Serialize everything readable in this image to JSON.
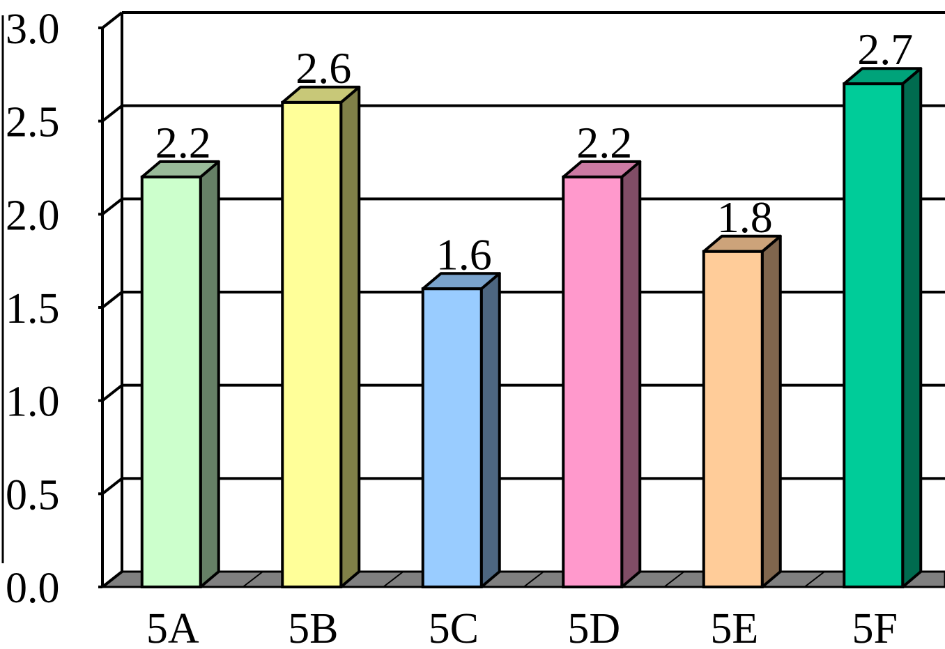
{
  "chart_data": {
    "type": "bar",
    "categories": [
      "5A",
      "5B",
      "5C",
      "5D",
      "5E",
      "5F"
    ],
    "values": [
      2.2,
      2.6,
      1.6,
      2.2,
      1.8,
      2.7
    ],
    "value_labels": [
      "2.2",
      "2.6",
      "1.6",
      "2.2",
      "1.8",
      "2.7"
    ],
    "yticks": [
      "0.0",
      "0.5",
      "1.0",
      "1.5",
      "2.0",
      "2.5",
      "3.0"
    ],
    "ylim": [
      0,
      3.0
    ],
    "grid": true,
    "style": "3d",
    "title": "",
    "xlabel": "",
    "ylabel": "",
    "colors": [
      {
        "front": "#CCFFCC",
        "top": "#99BB99",
        "side": "#668066"
      },
      {
        "front": "#FFFF99",
        "top": "#C8C878",
        "side": "#808048"
      },
      {
        "front": "#99CCFF",
        "top": "#7AA3CC",
        "side": "#4D6680"
      },
      {
        "front": "#FF99CC",
        "top": "#CC7AA3",
        "side": "#804D66"
      },
      {
        "front": "#FFCC99",
        "top": "#CCA37A",
        "side": "#80664D"
      },
      {
        "front": "#00CC99",
        "top": "#00A37A",
        "side": "#006B4F"
      }
    ],
    "floor_color": "#808080"
  }
}
